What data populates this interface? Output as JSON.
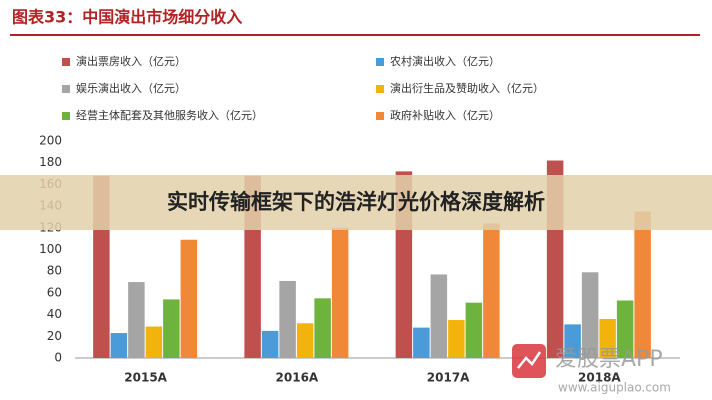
{
  "chart_data": {
    "type": "bar",
    "title": "图表33：中国演出市场细分收入",
    "categories": [
      "2015A",
      "2016A",
      "2017A",
      "2018A"
    ],
    "series": [
      {
        "name": "演出票房收入（亿元）",
        "color": "#c0504d",
        "values": [
          168,
          168,
          172,
          182
        ]
      },
      {
        "name": "农村演出收入（亿元）",
        "color": "#4a9bd8",
        "values": [
          23,
          25,
          28,
          31
        ]
      },
      {
        "name": "娱乐演出收入（亿元）",
        "color": "#a5a5a5",
        "values": [
          70,
          71,
          77,
          79
        ]
      },
      {
        "name": "演出衍生品及赞助收入（亿元）",
        "color": "#f2b40c",
        "values": [
          29,
          32,
          35,
          36
        ]
      },
      {
        "name": "经营主体配套及其他服务收入（亿元）",
        "color": "#6fb33f",
        "values": [
          54,
          55,
          51,
          53
        ]
      },
      {
        "name": "政府补贴收入（亿元）",
        "color": "#f0883a",
        "values": [
          109,
          120,
          124,
          135
        ]
      }
    ],
    "ylim": [
      0,
      200
    ],
    "yticks": [
      0,
      20,
      40,
      60,
      80,
      100,
      120,
      140,
      160,
      180,
      200
    ],
    "grid": false
  },
  "overlay": {
    "banner": "实时传输框架下的浩洋灯光价格深度解析",
    "watermark": "爱股票APP",
    "url": "www.aiguplao.com"
  }
}
